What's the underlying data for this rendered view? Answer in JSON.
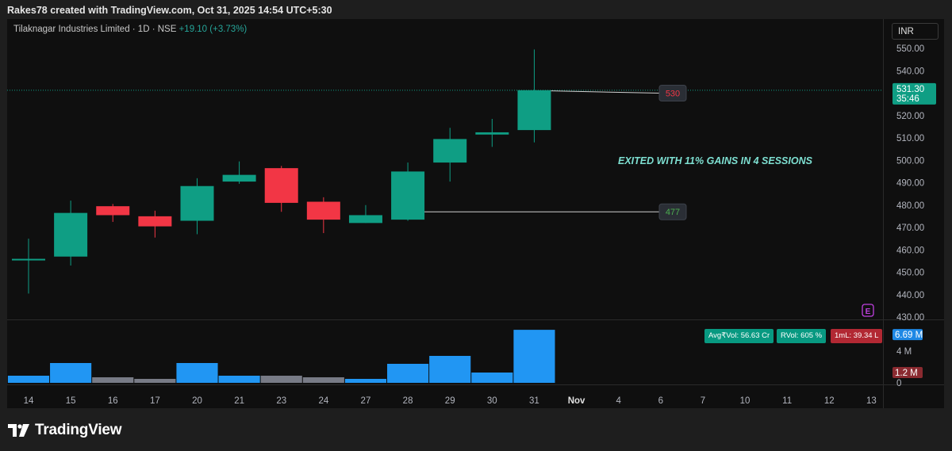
{
  "header": {
    "title": "Rakes78 created with TradingView.com, Oct 31, 2025 14:54 UTC+5:30"
  },
  "legend": {
    "symbol": "Tilaknagar Industries Limited · 1D · NSE",
    "change": "+19.10 (+3.73%)"
  },
  "currency_button": "INR",
  "colors": {
    "up": "#0f9e84",
    "down": "#f23645",
    "volume_up": "#2196f3",
    "volume_down": "#787b86",
    "background": "#0f0f0f",
    "annotation_text": "#7ee0d2"
  },
  "price_axis": {
    "ticks": [
      "550.00",
      "540.00",
      "530.00",
      "520.00",
      "510.00",
      "500.00",
      "490.00",
      "480.00",
      "470.00",
      "460.00",
      "450.00",
      "440.00",
      "430.00"
    ],
    "last_price": "531.30",
    "countdown": "35:46"
  },
  "volume_axis": {
    "ticks": [
      "4 M",
      "0"
    ],
    "last_volume": "6.69 M",
    "avg_marker": "1.2 M"
  },
  "volume_stats": {
    "avg_vol": "Avg₹Vol: 56.63 Cr",
    "rvol": "RVol: 605 %",
    "one_ml": "1mL: 39.34 L"
  },
  "time_axis": [
    "14",
    "15",
    "16",
    "17",
    "20",
    "21",
    "23",
    "24",
    "27",
    "28",
    "29",
    "30",
    "31",
    "Nov",
    "4",
    "6",
    "7",
    "10",
    "11",
    "12",
    "13"
  ],
  "annotations": {
    "text": "EXITED WITH 11% GAINS IN 4 SESSIONS",
    "label_high": "530",
    "label_low": "477",
    "earnings_marker": "E"
  },
  "footer": {
    "brand": "TradingView"
  },
  "chart_data": {
    "type": "candlestick",
    "title": "Tilaknagar Industries Limited · 1D · NSE",
    "y_range": [
      430,
      550
    ],
    "categories": [
      "14",
      "15",
      "16",
      "17",
      "20",
      "21",
      "23",
      "24",
      "27",
      "28",
      "29",
      "30",
      "31"
    ],
    "ohlc": [
      {
        "open": 455.5,
        "high": 465.0,
        "low": 440.5,
        "close": 456.0
      },
      {
        "open": 457.0,
        "high": 482.0,
        "low": 453.0,
        "close": 476.5
      },
      {
        "open": 479.5,
        "high": 480.5,
        "low": 472.5,
        "close": 475.5
      },
      {
        "open": 475.0,
        "high": 477.5,
        "low": 465.5,
        "close": 470.5
      },
      {
        "open": 473.0,
        "high": 492.0,
        "low": 467.0,
        "close": 488.5
      },
      {
        "open": 490.5,
        "high": 499.5,
        "low": 489.5,
        "close": 493.5
      },
      {
        "open": 496.5,
        "high": 497.5,
        "low": 477.0,
        "close": 481.0
      },
      {
        "open": 481.5,
        "high": 483.5,
        "low": 467.5,
        "close": 473.5
      },
      {
        "open": 472.0,
        "high": 480.0,
        "low": 472.0,
        "close": 475.5
      },
      {
        "open": 473.5,
        "high": 499.0,
        "low": 473.0,
        "close": 495.0
      },
      {
        "open": 499.0,
        "high": 514.5,
        "low": 490.5,
        "close": 509.5
      },
      {
        "open": 511.5,
        "high": 518.5,
        "low": 506.0,
        "close": 512.5
      },
      {
        "open": 513.5,
        "high": 549.5,
        "low": 508.0,
        "close": 531.3
      }
    ],
    "volume": [
      0.9,
      2.5,
      0.7,
      0.5,
      2.5,
      0.9,
      0.9,
      0.7,
      0.5,
      2.4,
      3.4,
      1.3,
      6.69
    ],
    "volume_unit": "M",
    "volume_range": [
      0,
      7
    ],
    "trendlines": [
      {
        "from": {
          "category": "31",
          "price": 531.0
        },
        "to": {
          "category": "Nov",
          "price": 530.0
        },
        "label": "530"
      },
      {
        "from": {
          "category": "28",
          "price": 477.0
        },
        "to": {
          "category": "Nov",
          "price": 477.0
        },
        "label": "477"
      }
    ]
  }
}
